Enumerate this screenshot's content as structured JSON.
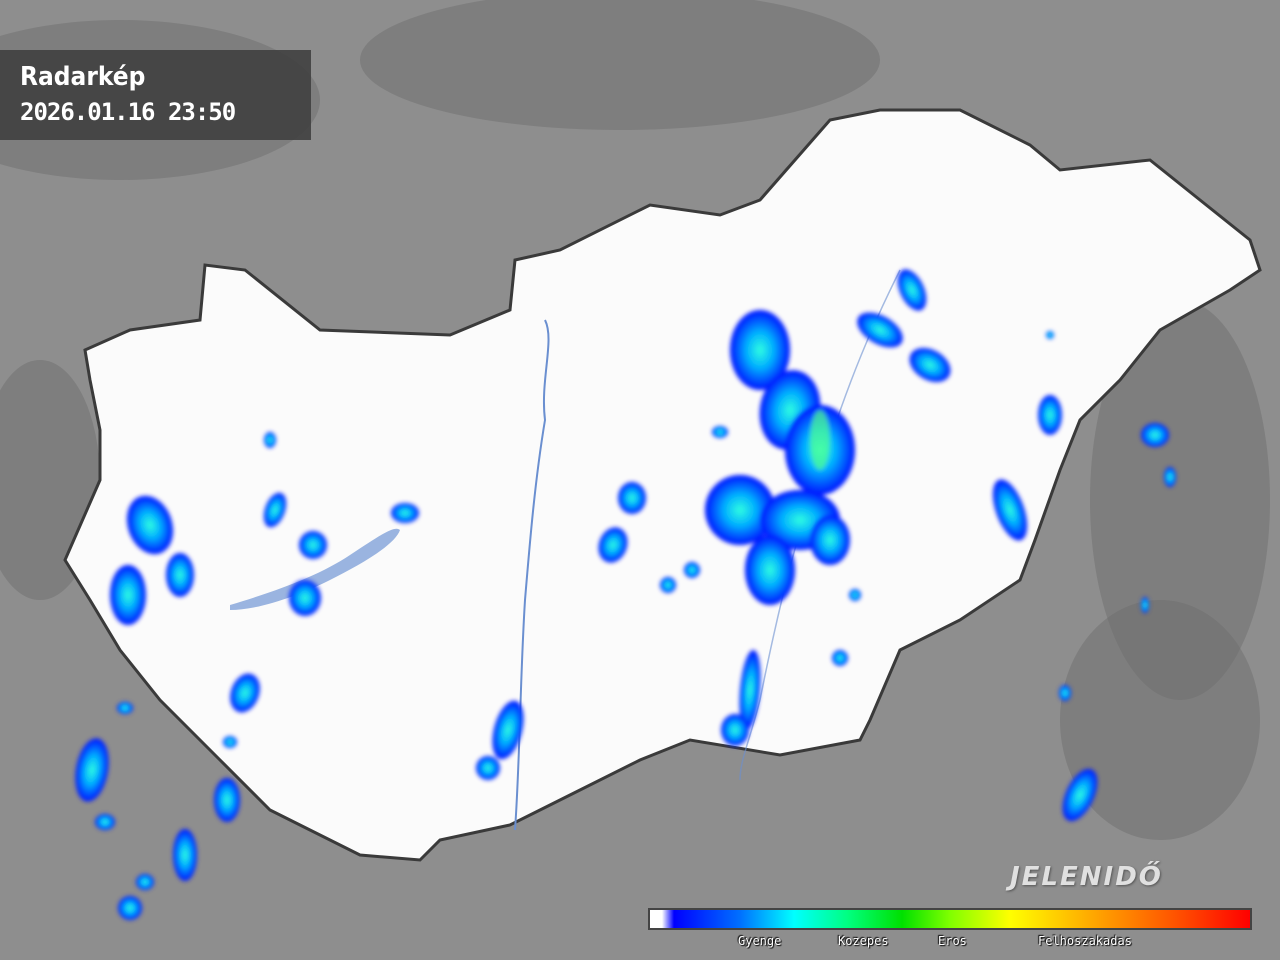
{
  "header": {
    "title": "Radarkép",
    "timestamp": "2026.01.16 23:50"
  },
  "legend": {
    "labels": [
      "Gyenge",
      "Kozepes",
      "Eros",
      "Felhoszakadas"
    ],
    "colors": [
      "#ffffff",
      "#0000ff",
      "#00ffff",
      "#00e000",
      "#ffff00",
      "#ffa000",
      "#ff0000"
    ]
  },
  "logo": "JELENIDŐ",
  "colors": {
    "background": "#8e8e8e",
    "country": "#ffffff",
    "border": "#3a3a3a",
    "water": "#6a8fd0"
  }
}
